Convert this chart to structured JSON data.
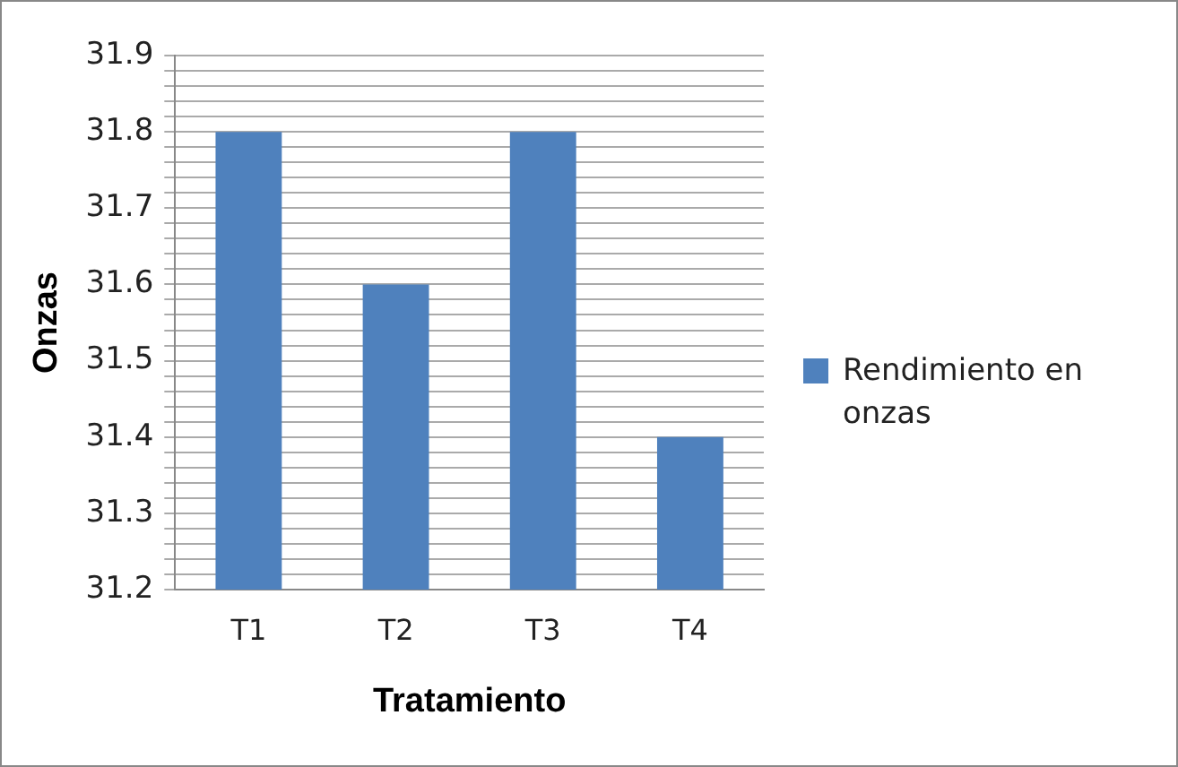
{
  "chart_data": {
    "type": "bar",
    "xlabel": "Tratamiento",
    "ylabel": "Onzas",
    "categories": [
      "T1",
      "T2",
      "T3",
      "T4"
    ],
    "series": [
      {
        "name": "Rendimiento en onzas",
        "color": "#4f81bd",
        "values": [
          31.8,
          31.6,
          31.8,
          31.4
        ]
      }
    ],
    "ylim": [
      31.2,
      31.9
    ],
    "yticks": [
      31.2,
      {
        "value": 31.22,
        "label": null
      },
      {
        "value": 31.24,
        "label": null
      },
      {
        "value": 31.26,
        "label": null
      },
      {
        "value": 31.28,
        "label": null
      },
      31.3,
      {
        "value": 31.32,
        "label": null
      },
      {
        "value": 31.34,
        "label": null
      },
      {
        "value": 31.36,
        "label": null
      },
      {
        "value": 31.38,
        "label": null
      },
      31.4,
      {
        "value": 31.42,
        "label": null
      },
      {
        "value": 31.44,
        "label": null
      },
      {
        "value": 31.46,
        "label": null
      },
      {
        "value": 31.48,
        "label": null
      },
      31.5,
      {
        "value": 31.52,
        "label": null
      },
      {
        "value": 31.54,
        "label": null
      },
      {
        "value": 31.56,
        "label": null
      },
      {
        "value": 31.58,
        "label": null
      },
      31.6,
      {
        "value": 31.62,
        "label": null
      },
      {
        "value": 31.64,
        "label": null
      },
      {
        "value": 31.66,
        "label": null
      },
      {
        "value": 31.68,
        "label": null
      },
      31.7,
      {
        "value": 31.72,
        "label": null
      },
      {
        "value": 31.74,
        "label": null
      },
      {
        "value": 31.76,
        "label": null
      },
      {
        "value": 31.78,
        "label": null
      },
      31.8,
      {
        "value": 31.82,
        "label": null
      },
      {
        "value": 31.84,
        "label": null
      },
      {
        "value": 31.86,
        "label": null
      },
      {
        "value": 31.88,
        "label": null
      },
      31.9
    ],
    "grid": "y",
    "legend": "right"
  }
}
